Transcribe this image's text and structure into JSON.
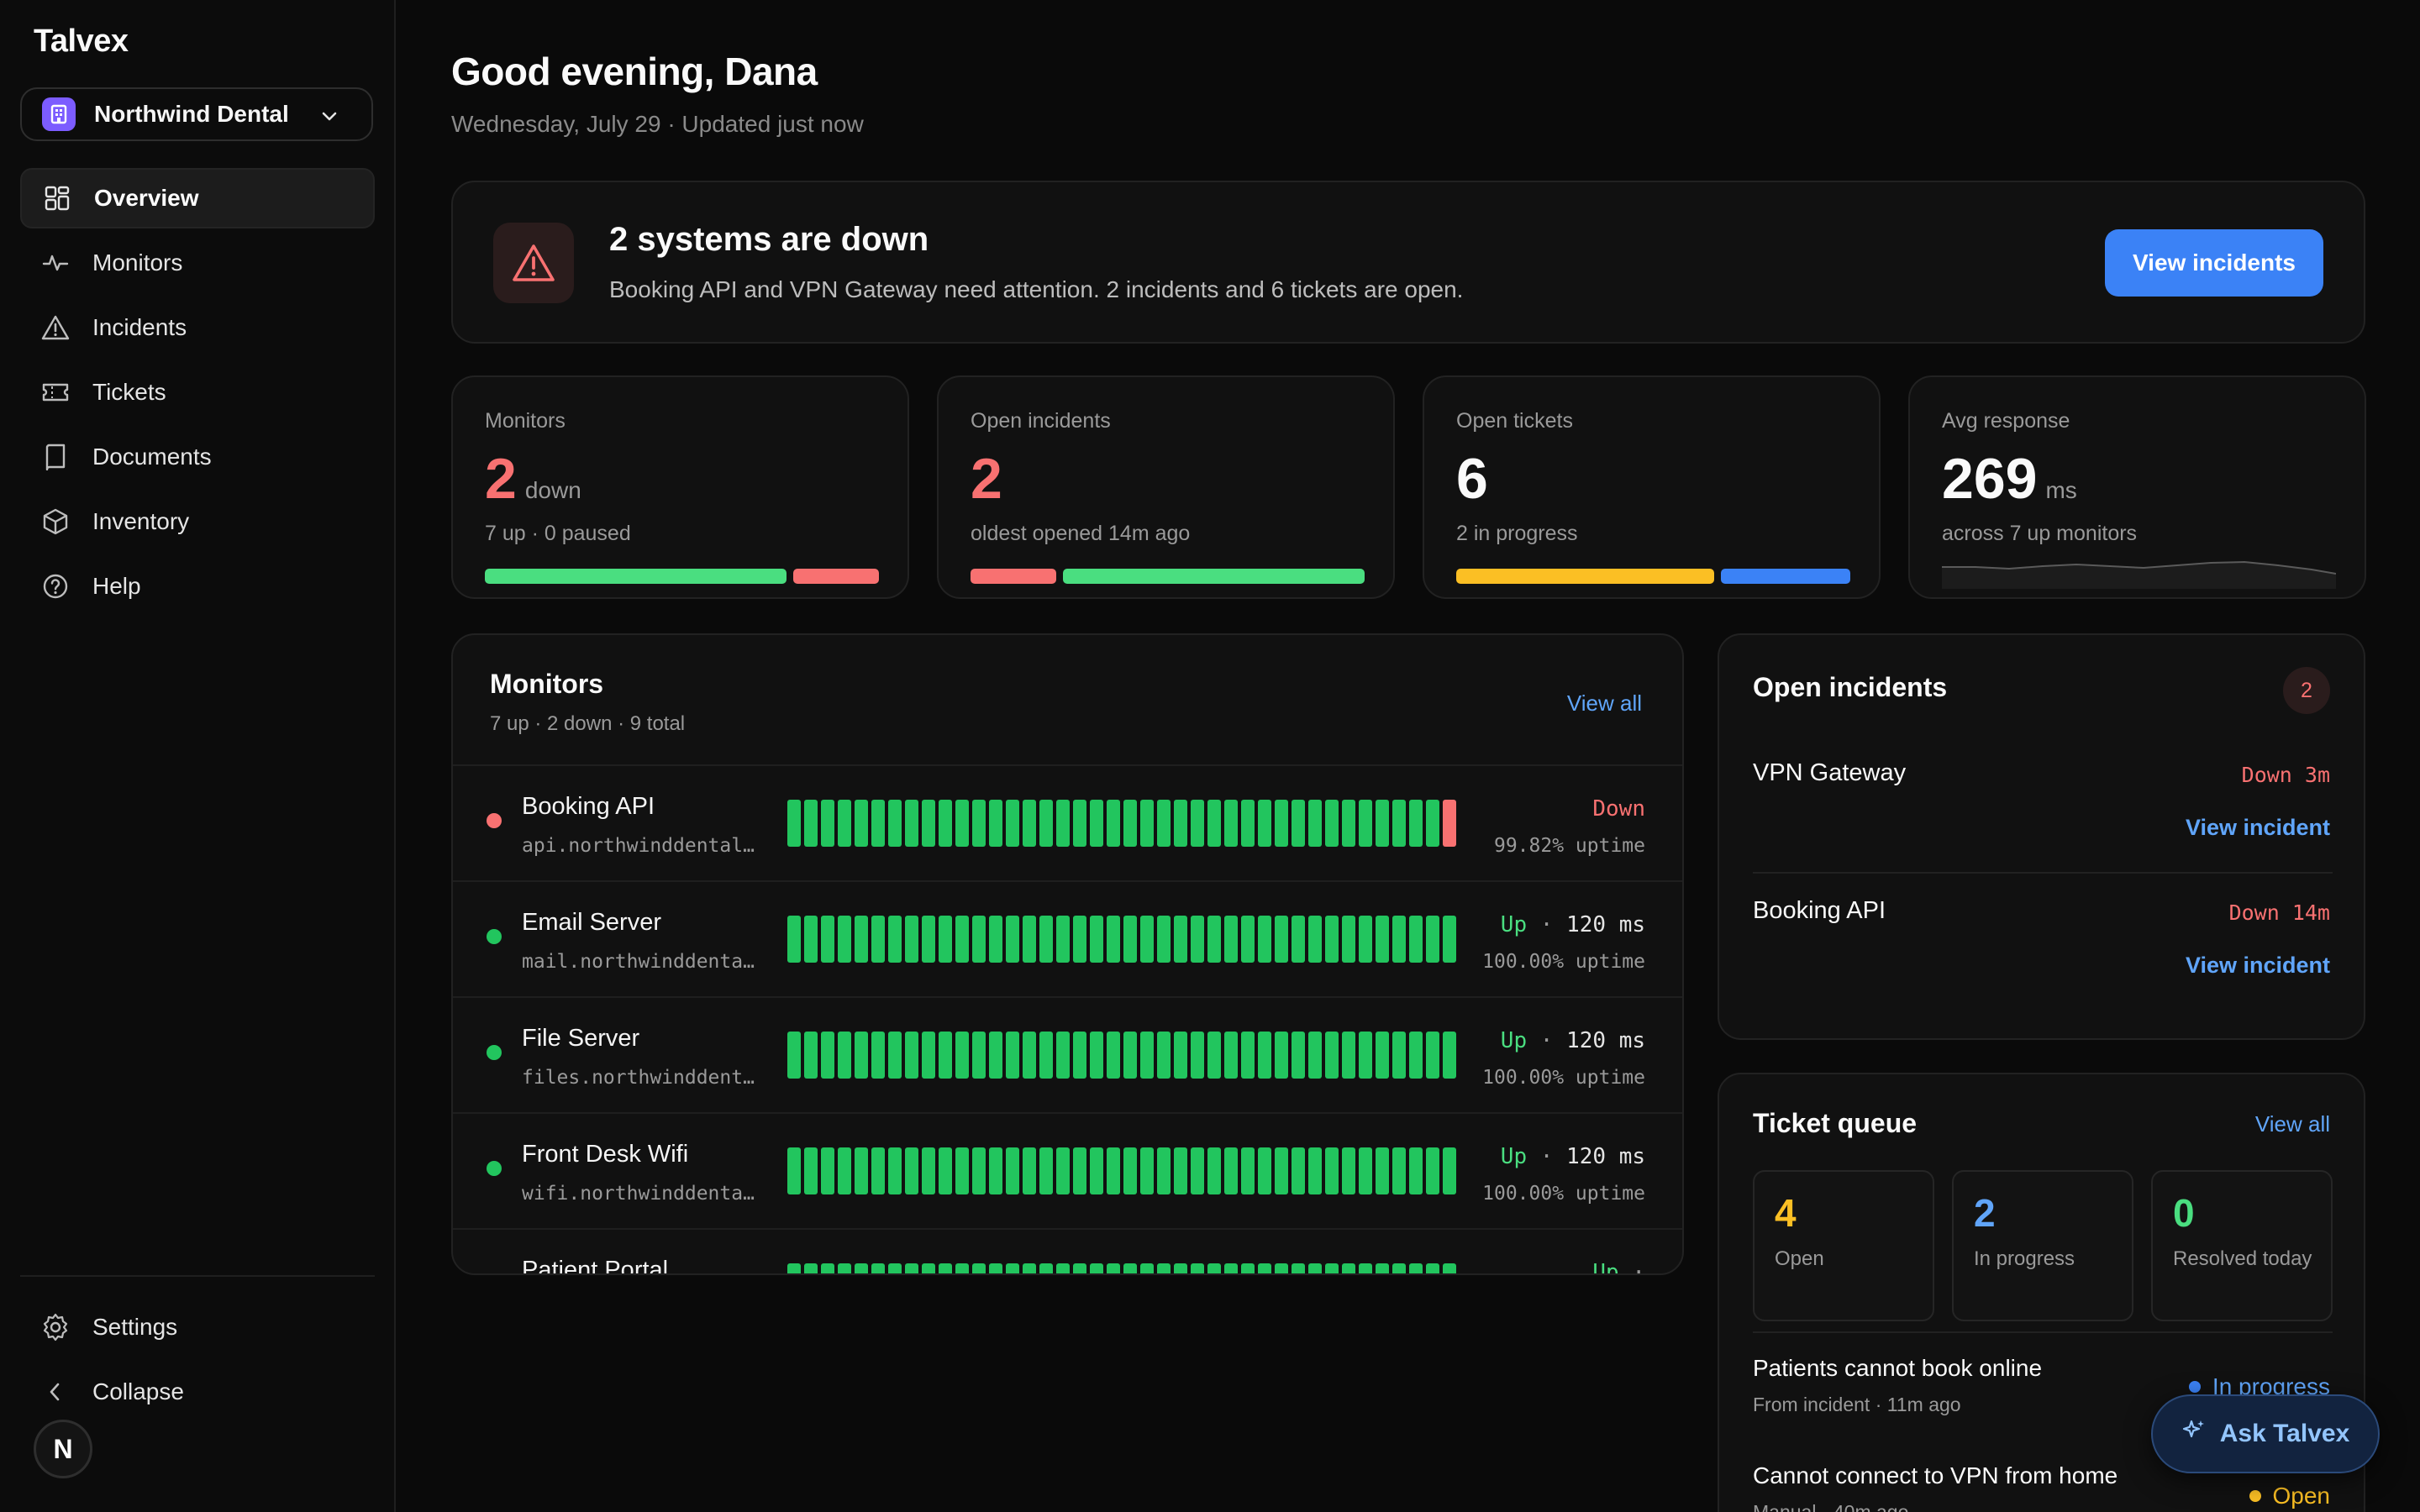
{
  "app": {
    "name": "Talvex"
  },
  "org": {
    "name": "Northwind Dental"
  },
  "nav": [
    {
      "label": "Overview",
      "icon": "grid-icon"
    },
    {
      "label": "Monitors",
      "icon": "pulse-icon"
    },
    {
      "label": "Incidents",
      "icon": "warning-icon"
    },
    {
      "label": "Tickets",
      "icon": "ticket-icon"
    },
    {
      "label": "Documents",
      "icon": "book-icon"
    },
    {
      "label": "Inventory",
      "icon": "box-icon"
    },
    {
      "label": "Help",
      "icon": "help-icon"
    }
  ],
  "sidebar_bottom": {
    "settings": "Settings",
    "collapse": "Collapse",
    "avatar": "N"
  },
  "header": {
    "greeting": "Good evening, Dana",
    "subtitle": "Wednesday, July 29 · Updated just now"
  },
  "alert": {
    "title": "2 systems are down",
    "description": "Booking API and VPN Gateway need attention. 2 incidents and 6 tickets are open.",
    "button": "View incidents"
  },
  "stats": {
    "monitors": {
      "caption": "Monitors",
      "value": "2",
      "unit": "down",
      "note": "7 up · 0 paused"
    },
    "incidents": {
      "caption": "Open incidents",
      "value": "2",
      "note": "oldest opened 14m ago"
    },
    "tickets": {
      "caption": "Open tickets",
      "value": "6",
      "note": "2 in progress"
    },
    "response": {
      "caption": "Avg response",
      "value": "269",
      "unit": "ms",
      "note": "across 7 up monitors"
    }
  },
  "colors": {
    "green": "#22c55e",
    "red": "#f87171",
    "blue": "#3b82f6",
    "amber": "#fbbf24"
  },
  "monitors_panel": {
    "title": "Monitors",
    "summary": "7 up · 2 down · 9 total",
    "view_all": "View all",
    "rows": [
      {
        "name": "Booking API",
        "host": "api.northwinddental.com",
        "status": "Down",
        "latency": "",
        "uptime": "99.82% uptime",
        "state": "down"
      },
      {
        "name": "Email Server",
        "host": "mail.northwinddental.com",
        "status": "Up",
        "latency": "120 ms",
        "uptime": "100.00% uptime",
        "state": "up"
      },
      {
        "name": "File Server",
        "host": "files.northwinddental.com",
        "status": "Up",
        "latency": "120 ms",
        "uptime": "100.00% uptime",
        "state": "up"
      },
      {
        "name": "Front Desk Wifi",
        "host": "wifi.northwinddental.com",
        "status": "Up",
        "latency": "120 ms",
        "uptime": "100.00% uptime",
        "state": "up"
      },
      {
        "name": "Patient Portal",
        "host": "",
        "status": "Up",
        "latency": "",
        "uptime": "",
        "state": "up"
      }
    ]
  },
  "incidents_panel": {
    "title": "Open incidents",
    "count": "2",
    "items": [
      {
        "name": "VPN Gateway",
        "status": "Down 3m",
        "link": "View incident"
      },
      {
        "name": "Booking API",
        "status": "Down 14m",
        "link": "View incident"
      }
    ]
  },
  "ticket_queue": {
    "title": "Ticket queue",
    "view_all": "View all",
    "boxes": [
      {
        "value": "4",
        "label": "Open"
      },
      {
        "value": "2",
        "label": "In progress"
      },
      {
        "value": "0",
        "label": "Resolved today"
      }
    ],
    "tickets": [
      {
        "title": "Patients cannot book online",
        "meta": "From incident · 11m ago",
        "state": "In progress"
      },
      {
        "title": "Cannot connect to VPN from home",
        "meta": "Manual · 40m ago",
        "state": "Open"
      }
    ]
  },
  "ask": {
    "label": "Ask Talvex"
  }
}
